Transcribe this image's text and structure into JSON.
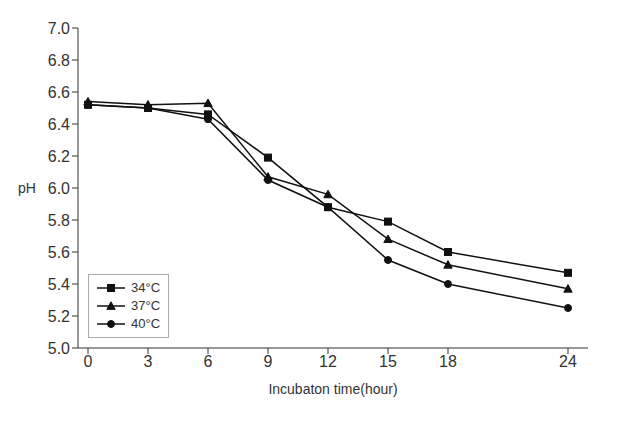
{
  "chart_data": {
    "type": "line",
    "x": [
      0,
      3,
      6,
      9,
      12,
      15,
      18,
      24
    ],
    "series": [
      {
        "name": "34°C",
        "color": "#111111",
        "marker": "square",
        "values": [
          6.52,
          6.5,
          6.46,
          6.19,
          5.88,
          5.79,
          5.6,
          5.47
        ]
      },
      {
        "name": "37°C",
        "color": "#111111",
        "marker": "triangle",
        "values": [
          6.54,
          6.52,
          6.53,
          6.07,
          5.96,
          5.68,
          5.52,
          5.37
        ]
      },
      {
        "name": "40°C",
        "color": "#111111",
        "marker": "circle",
        "values": [
          6.52,
          6.5,
          6.43,
          6.05,
          5.88,
          5.55,
          5.4,
          5.25
        ]
      }
    ],
    "xlabel": "Incubaton time(hour)",
    "ylabel": "pH",
    "xlim": [
      -0.5,
      25
    ],
    "xticks": [
      0,
      3,
      6,
      9,
      12,
      15,
      18,
      24
    ],
    "ylim": [
      5.0,
      7.0
    ],
    "yticks": [
      {
        "value": 5.0,
        "label": "5.0"
      },
      5.2,
      5.4,
      5.6,
      5.8,
      {
        "value": 6.0,
        "label": "6.0"
      },
      6.2,
      6.4,
      6.6,
      6.8,
      {
        "value": 7.0,
        "label": "7.0"
      }
    ],
    "grid": false,
    "legend": "lower left"
  }
}
